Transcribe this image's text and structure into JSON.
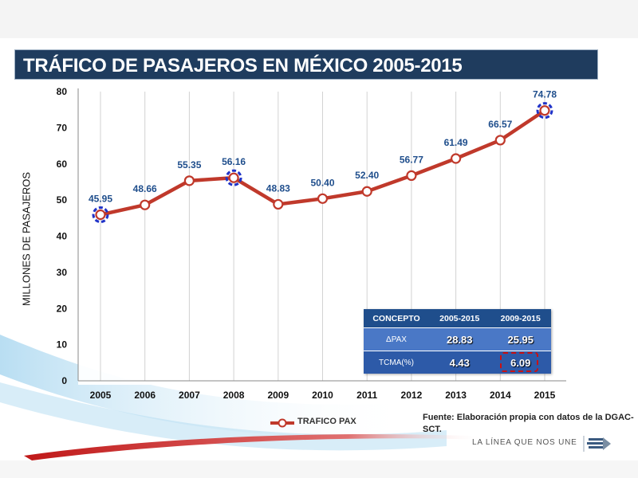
{
  "title": "TRÁFICO DE PASAJEROS EN MÉXICO 2005-2015",
  "colors": {
    "title_bg": "#1f3c5e",
    "line": "#c0392b",
    "label": "#1f4e8c",
    "highlight": "#2033c8"
  },
  "chart_data": {
    "type": "line",
    "title": "TRÁFICO DE PASAJEROS EN MÉXICO 2005-2015",
    "xlabel": "",
    "ylabel": "MILLONES DE PASAJEROS",
    "categories": [
      "2005",
      "2006",
      "2007",
      "2008",
      "2009",
      "2010",
      "2011",
      "2012",
      "2013",
      "2014",
      "2015"
    ],
    "series": [
      {
        "name": "TRAFICO PAX",
        "values": [
          45.95,
          48.66,
          55.35,
          56.16,
          48.83,
          50.4,
          52.4,
          56.77,
          61.49,
          66.57,
          74.78
        ]
      }
    ],
    "data_labels": [
      "45.95",
      "48.66",
      "55.35",
      "56.16",
      "48.83",
      "50.40",
      "52.40",
      "56.77",
      "61.49",
      "66.57",
      "74.78"
    ],
    "highlighted_points": [
      "2005",
      "2008",
      "2015"
    ],
    "ylim": [
      0,
      80
    ],
    "yticks": [
      "0",
      "10",
      "20",
      "30",
      "40",
      "50",
      "60",
      "70",
      "80"
    ],
    "grid": "vertical",
    "legend_position": "bottom"
  },
  "summary_table": {
    "headers": [
      "CONCEPTO",
      "2005-2015",
      "2009-2015"
    ],
    "rows": [
      {
        "label": "ΔPAX",
        "v1": "28.83",
        "v2": "25.95"
      },
      {
        "label": "TCMA(%)",
        "v1": "4.43",
        "v2": "6.09"
      }
    ]
  },
  "source": "Fuente: Elaboración propia con datos de la DGAC-SCT.",
  "footer_tagline": "LA LÍNEA QUE NOS UNE"
}
